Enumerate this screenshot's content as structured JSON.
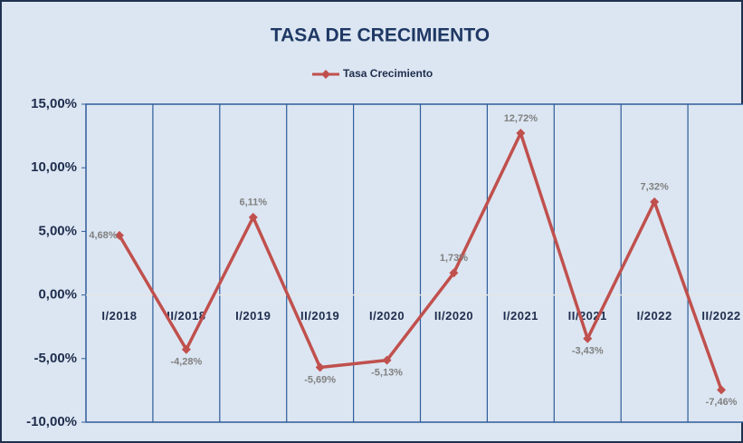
{
  "chart_data": {
    "type": "line",
    "title": "TASA DE CRECIMIENTO",
    "categories": [
      "I/2018",
      "II/2018",
      "I/2019",
      "II/2019",
      "I/2020",
      "II/2020",
      "I/2021",
      "II/2021",
      "I/2022",
      "II/2022"
    ],
    "series": [
      {
        "name": "Tasa Crecimiento",
        "color": "#c0504d",
        "values": [
          4.68,
          -4.28,
          6.11,
          -5.69,
          -5.13,
          1.73,
          12.72,
          -3.43,
          7.32,
          -7.46
        ],
        "value_labels": [
          "4,68%",
          "-4,28%",
          "6,11%",
          "-5,69%",
          "-5,13%",
          "1,73%",
          "12,72%",
          "-3,43%",
          "7,32%",
          "-7,46%"
        ]
      }
    ],
    "ylim": [
      -10,
      15
    ],
    "yticks": [
      {
        "value": -10,
        "label": "-10,00%"
      },
      {
        "value": -5,
        "label": "-5,00%"
      },
      {
        "value": 0,
        "label": "0,00%"
      },
      {
        "value": 5,
        "label": "5,00%"
      },
      {
        "value": 10,
        "label": "10,00%"
      },
      {
        "value": 15,
        "label": "15,00%"
      }
    ],
    "legend": "top"
  }
}
